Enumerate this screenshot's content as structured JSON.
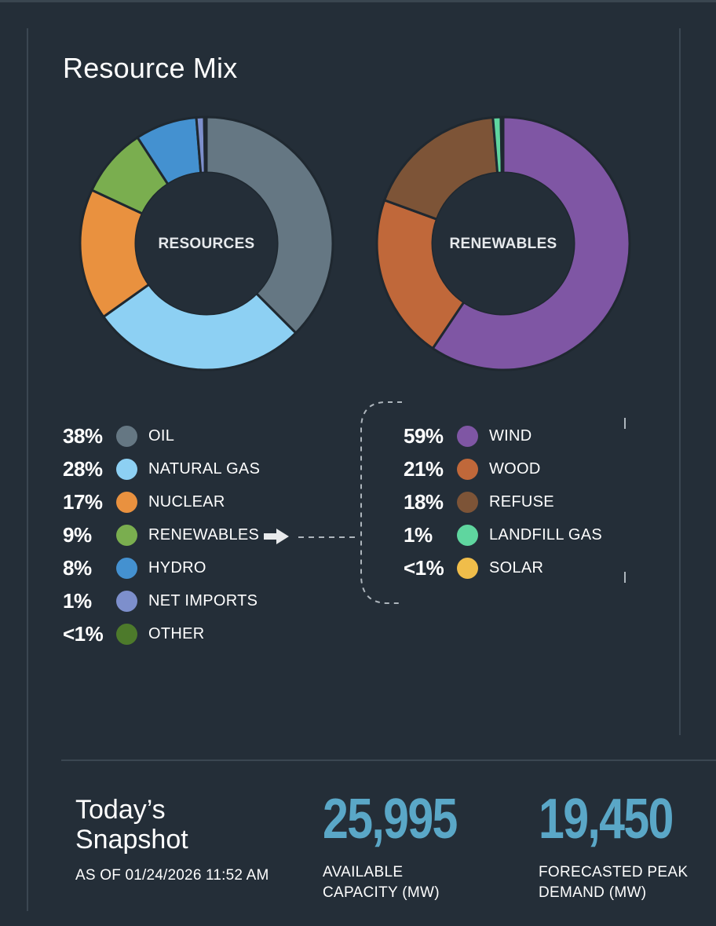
{
  "title": "Resource Mix",
  "colors": {
    "background": "#242e38",
    "accent": "#5aa7c7"
  },
  "chart_data": [
    {
      "type": "pie",
      "title": "RESOURCES",
      "slices": [
        {
          "label": "OIL",
          "value": 38,
          "pct_label": "38%",
          "color": "#657783"
        },
        {
          "label": "NATURAL GAS",
          "value": 28,
          "pct_label": "28%",
          "color": "#8dd0f3"
        },
        {
          "label": "NUCLEAR",
          "value": 17,
          "pct_label": "17%",
          "color": "#e9913f"
        },
        {
          "label": "RENEWABLES",
          "value": 9,
          "pct_label": "9%",
          "color": "#7aae4f"
        },
        {
          "label": "HYDRO",
          "value": 8,
          "pct_label": "8%",
          "color": "#4491d0"
        },
        {
          "label": "NET IMPORTS",
          "value": 1,
          "pct_label": "1%",
          "color": "#7d8fcc"
        },
        {
          "label": "OTHER",
          "value": 0.3,
          "pct_label": "<1%",
          "color": "#4d7a2b"
        }
      ]
    },
    {
      "type": "pie",
      "title": "RENEWABLES",
      "slices": [
        {
          "label": "WIND",
          "value": 59,
          "pct_label": "59%",
          "color": "#7f56a4"
        },
        {
          "label": "WOOD",
          "value": 21,
          "pct_label": "21%",
          "color": "#c0683a"
        },
        {
          "label": "REFUSE",
          "value": 18,
          "pct_label": "18%",
          "color": "#7d5437"
        },
        {
          "label": "LANDFILL GAS",
          "value": 1,
          "pct_label": "1%",
          "color": "#5fd69f"
        },
        {
          "label": "SOLAR",
          "value": 0.3,
          "pct_label": "<1%",
          "color": "#f0bd4a"
        }
      ]
    }
  ],
  "snapshot": {
    "title_line1": "Today’s",
    "title_line2": "Snapshot",
    "as_of": "AS OF 01/24/2026 11:52 AM",
    "available_capacity": "25,995",
    "available_label_line1": "AVAILABLE",
    "available_label_line2": "CAPACITY (MW)",
    "forecast_peak": "19,450",
    "forecast_label_line1": "FORECASTED PEAK",
    "forecast_label_line2": "DEMAND (MW)"
  }
}
